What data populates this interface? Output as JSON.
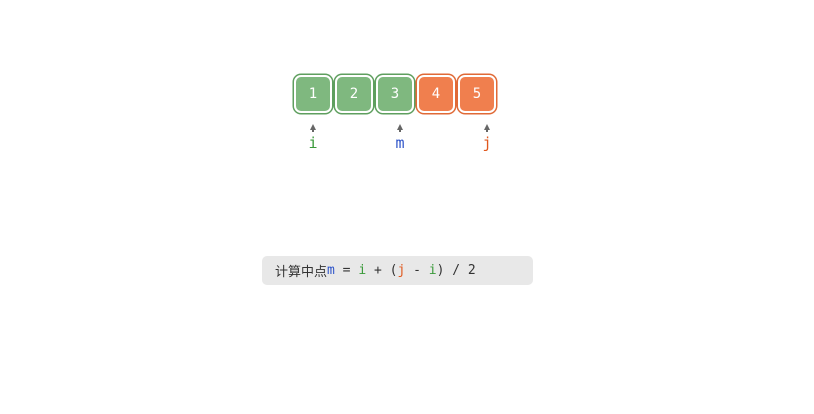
{
  "array": {
    "cells": [
      {
        "value": "1",
        "state": "in-range",
        "color": "#7fb87f"
      },
      {
        "value": "2",
        "state": "in-range",
        "color": "#7fb87f"
      },
      {
        "value": "3",
        "state": "in-range",
        "color": "#7fb87f"
      },
      {
        "value": "4",
        "state": "excluded",
        "color": "#f07f4e"
      },
      {
        "value": "5",
        "state": "excluded",
        "color": "#f07f4e"
      }
    ]
  },
  "pointers": [
    {
      "label": "i",
      "index": 0,
      "color": "#3a9a3a"
    },
    {
      "label": "m",
      "index": 2,
      "color": "#2e54c9"
    },
    {
      "label": "j",
      "index": 4,
      "color": "#e0581e"
    }
  ],
  "formula": {
    "prefix": "计算中点",
    "m": "m",
    "eq": " = ",
    "i1": "i",
    "plus": " + (",
    "j": "j",
    "minus": " - ",
    "i2": "i",
    "tail": ") / 2",
    "colors": {
      "m": "#2e54c9",
      "i": "#3a9a3a",
      "j": "#e0581e"
    }
  }
}
